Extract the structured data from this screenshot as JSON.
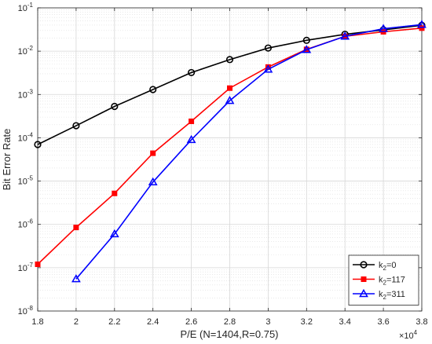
{
  "chart_data": {
    "type": "line",
    "title": "",
    "xlabel": "P/E (N=1404,R=0.75)",
    "ylabel": "Bit Error Rate",
    "x_exponent_label": {
      "base": "×10",
      "exp": "4"
    },
    "x_scale": "linear",
    "y_scale": "log",
    "xlim": [
      18000,
      38000
    ],
    "ylim": [
      1e-08,
      0.1
    ],
    "x_ticks": [
      18000,
      20000,
      22000,
      24000,
      26000,
      28000,
      30000,
      32000,
      34000,
      36000,
      38000
    ],
    "x_tick_labels": [
      "1.8",
      "2",
      "2.2",
      "2.4",
      "2.6",
      "2.8",
      "3",
      "3.2",
      "3.4",
      "3.6",
      "3.8"
    ],
    "y_ticks": [
      {
        "value": 1e-08,
        "base": "10",
        "exp": "-8"
      },
      {
        "value": 1e-07,
        "base": "10",
        "exp": "-7"
      },
      {
        "value": 1e-06,
        "base": "10",
        "exp": "-6"
      },
      {
        "value": 1e-05,
        "base": "10",
        "exp": "-5"
      },
      {
        "value": 0.0001,
        "base": "10",
        "exp": "-4"
      },
      {
        "value": 0.001,
        "base": "10",
        "exp": "-3"
      },
      {
        "value": 0.01,
        "base": "10",
        "exp": "-2"
      },
      {
        "value": 0.1,
        "base": "10",
        "exp": "-1"
      }
    ],
    "grid": true,
    "minor_grid": true,
    "legend_position": "bottom-right",
    "series": [
      {
        "label_main": "k",
        "label_sub": "2",
        "label_rest": "=0",
        "color": "#000000",
        "marker": "circle",
        "x": [
          18000,
          20000,
          22000,
          24000,
          26000,
          28000,
          30000,
          32000,
          34000,
          36000,
          38000
        ],
        "y": [
          7e-05,
          0.00019,
          0.00053,
          0.0013,
          0.0032,
          0.0064,
          0.0118,
          0.0178,
          0.0245,
          0.031,
          0.0395
        ]
      },
      {
        "label_main": "k",
        "label_sub": "2",
        "label_rest": "=117",
        "color": "#ff0000",
        "marker": "square",
        "x": [
          18000,
          20000,
          22000,
          24000,
          26000,
          28000,
          30000,
          32000,
          34000,
          36000,
          38000
        ],
        "y": [
          1.2e-07,
          8.5e-07,
          5.2e-06,
          4.4e-05,
          0.00024,
          0.0014,
          0.0043,
          0.011,
          0.022,
          0.028,
          0.034
        ]
      },
      {
        "label_main": "k",
        "label_sub": "2",
        "label_rest": "=311",
        "color": "#0000ff",
        "marker": "triangle",
        "x": [
          20000,
          22000,
          24000,
          26000,
          28000,
          30000,
          32000,
          34000,
          36000,
          38000
        ],
        "y": [
          5.5e-08,
          6e-07,
          9.5e-06,
          9e-05,
          0.00072,
          0.0038,
          0.0108,
          0.022,
          0.033,
          0.041
        ]
      }
    ]
  }
}
